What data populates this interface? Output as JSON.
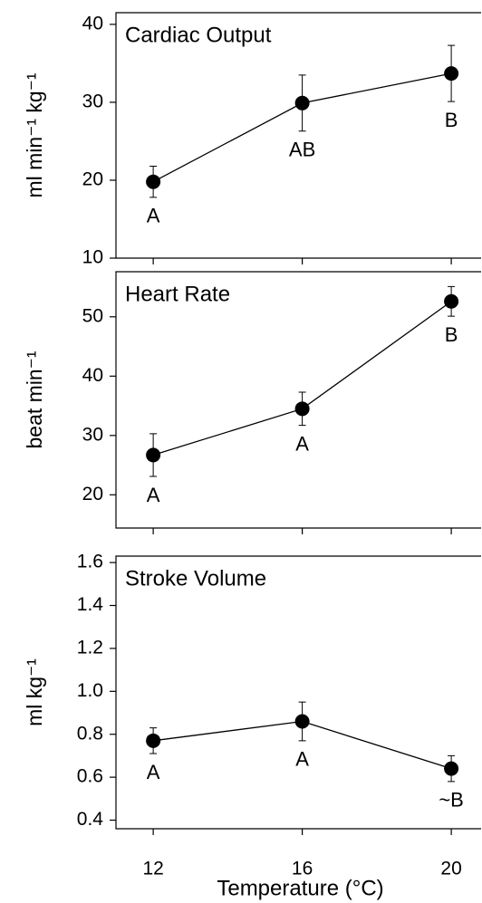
{
  "chart_data": [
    {
      "type": "line",
      "title": "Cardiac Output",
      "ylabel": "ml min⁻¹ kg⁻¹",
      "x": [
        12,
        16,
        20
      ],
      "xlim": [
        11,
        20.8
      ],
      "xticks": [
        12,
        16,
        20
      ],
      "ylim": [
        10,
        41.5
      ],
      "yticks": [
        10,
        20,
        30,
        40
      ],
      "series": [
        {
          "color": "#000000",
          "values": [
            19.8,
            29.9,
            33.7
          ],
          "errors": [
            2.0,
            3.6,
            3.6
          ],
          "annotations": [
            "A",
            "AB",
            "B"
          ]
        }
      ]
    },
    {
      "type": "line",
      "title": "Heart Rate",
      "ylabel": "beat min⁻¹",
      "x": [
        12,
        16,
        20
      ],
      "xlim": [
        11,
        20.8
      ],
      "xticks": [
        12,
        16,
        20
      ],
      "ylim": [
        14.4,
        57.6
      ],
      "yticks": [
        20,
        30,
        40,
        50
      ],
      "series": [
        {
          "color": "#000000",
          "values": [
            26.7,
            34.5,
            52.6
          ],
          "errors": [
            3.6,
            2.8,
            2.5
          ],
          "annotations": [
            "A",
            "A",
            "B"
          ]
        }
      ]
    },
    {
      "type": "line",
      "title": "Stroke Volume",
      "ylabel": "ml kg⁻¹",
      "xlabel": "Temperature (°C)",
      "x": [
        12,
        16,
        20
      ],
      "xlim": [
        11,
        20.8
      ],
      "xticks": [
        12,
        16,
        20
      ],
      "ylim": [
        0.36,
        1.63
      ],
      "yticks": [
        0.4,
        0.6,
        0.8,
        {
          "value": 1.0,
          "label": "1.0"
        },
        1.2,
        1.4,
        1.6
      ],
      "series": [
        {
          "color": "#000000",
          "values": [
            0.77,
            0.86,
            0.64
          ],
          "errors": [
            0.06,
            0.09,
            0.06
          ],
          "annotations": [
            "A",
            "A",
            "~B"
          ]
        }
      ]
    }
  ]
}
